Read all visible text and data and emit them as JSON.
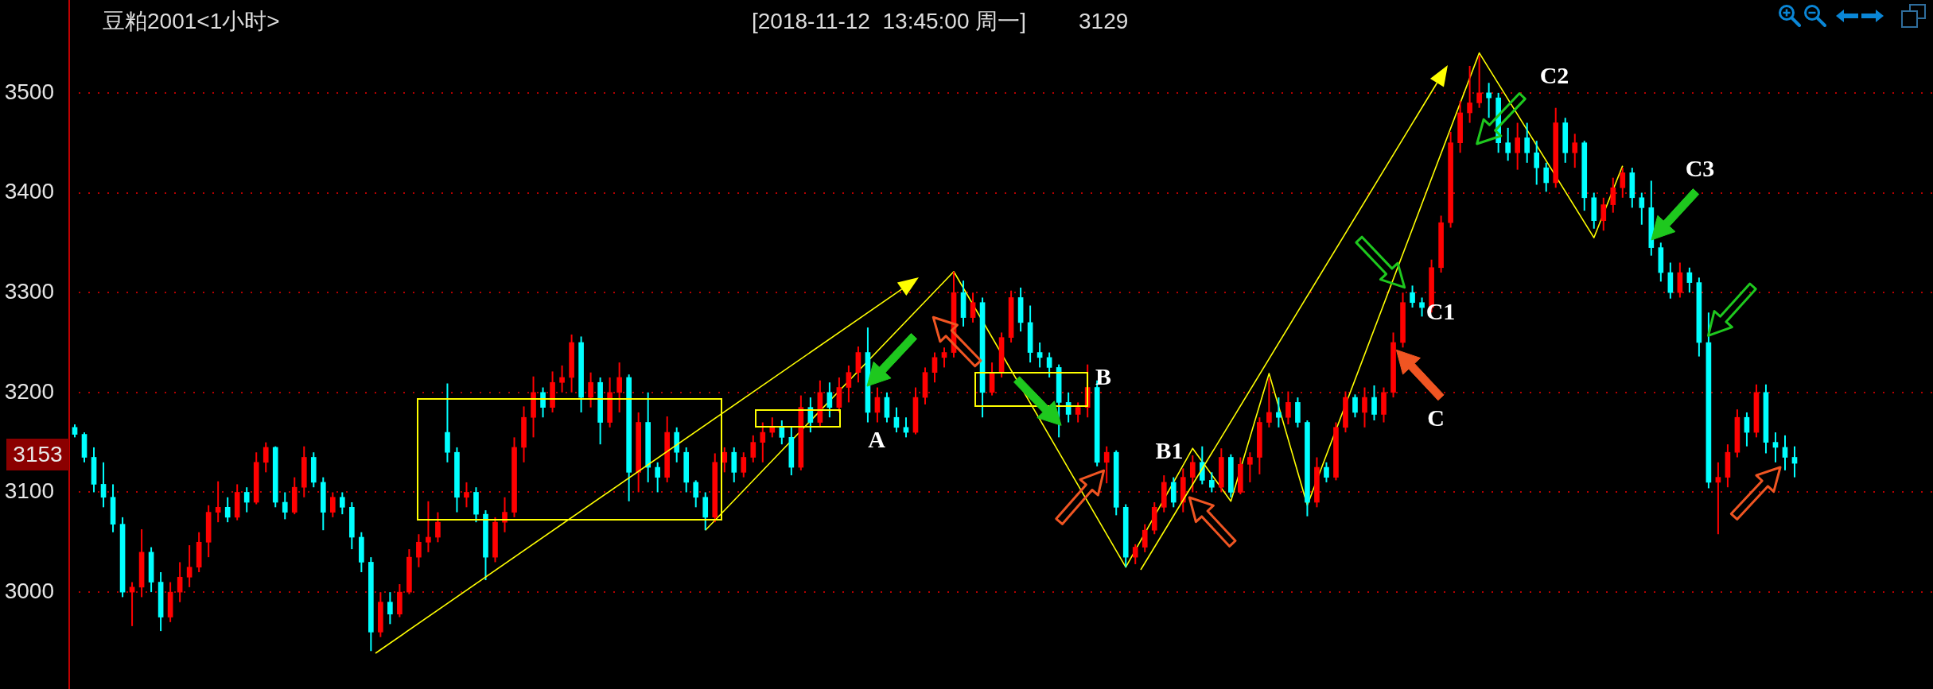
{
  "chart_data": {
    "type": "candlestick",
    "title": "豆粕2001<1小时>",
    "subtitle": "[2018-11-12  13:45:00 周一]",
    "categories": [
      null,
      null,
      null,
      null,
      null,
      null,
      null,
      null,
      null,
      null,
      null,
      null,
      null,
      null,
      null,
      null,
      null,
      null,
      null,
      null,
      null,
      null,
      null,
      null,
      null,
      null,
      null,
      null,
      null,
      null,
      null,
      null,
      null,
      null,
      null,
      null,
      null,
      null,
      null,
      null,
      null,
      null,
      null,
      null,
      null,
      null,
      null,
      null,
      null,
      null,
      null,
      null,
      null,
      null,
      null,
      null,
      null,
      null,
      null,
      null,
      null,
      null,
      null,
      null,
      null,
      null,
      null,
      null,
      null,
      null,
      null,
      null,
      null,
      null,
      null,
      null,
      null,
      null,
      null,
      null,
      null,
      null,
      null,
      null,
      null,
      null,
      null,
      null,
      null,
      null,
      null,
      null,
      null,
      null,
      null,
      null,
      null,
      null,
      null,
      null,
      null,
      null,
      null,
      null,
      null,
      null,
      null,
      null,
      null,
      null,
      null,
      null,
      null,
      null,
      null,
      null,
      null,
      null,
      null,
      null,
      null,
      null,
      null,
      null,
      null,
      null,
      null,
      null,
      null,
      null,
      null,
      null,
      null,
      null,
      null,
      null,
      null,
      null,
      null,
      null,
      null,
      null,
      null,
      null,
      null,
      null,
      null,
      null,
      null,
      null,
      null,
      null,
      null,
      null,
      null,
      null,
      null,
      null,
      null,
      null,
      null,
      null,
      null,
      null,
      null,
      null,
      null,
      null,
      null,
      null,
      null,
      null,
      null,
      null,
      null,
      null,
      null,
      null,
      null,
      null,
      null
    ],
    "ohlc": [
      [
        3165,
        3168,
        3155,
        3158
      ],
      [
        3158,
        3160,
        3130,
        3135
      ],
      [
        3135,
        3145,
        3100,
        3108
      ],
      [
        3108,
        3130,
        3085,
        3095
      ],
      [
        3095,
        3108,
        3060,
        3068
      ],
      [
        3068,
        3075,
        2995,
        3000
      ],
      [
        3000,
        3010,
        2966,
        3005
      ],
      [
        3005,
        3063,
        2995,
        3040
      ],
      [
        3040,
        3045,
        3000,
        3010
      ],
      [
        3010,
        3020,
        2961,
        2975
      ],
      [
        2975,
        3010,
        2970,
        3000
      ],
      [
        3000,
        3030,
        2990,
        3015
      ],
      [
        3015,
        3047,
        3005,
        3025
      ],
      [
        3025,
        3060,
        3020,
        3050
      ],
      [
        3050,
        3087,
        3035,
        3080
      ],
      [
        3080,
        3111,
        3070,
        3085
      ],
      [
        3085,
        3095,
        3070,
        3075
      ],
      [
        3075,
        3108,
        3072,
        3100
      ],
      [
        3100,
        3105,
        3080,
        3090
      ],
      [
        3090,
        3140,
        3088,
        3130
      ],
      [
        3130,
        3150,
        3120,
        3145
      ],
      [
        3145,
        3146,
        3085,
        3090
      ],
      [
        3090,
        3100,
        3073,
        3080
      ],
      [
        3080,
        3115,
        3078,
        3105
      ],
      [
        3105,
        3146,
        3095,
        3135
      ],
      [
        3135,
        3140,
        3105,
        3110
      ],
      [
        3110,
        3115,
        3062,
        3080
      ],
      [
        3080,
        3100,
        3075,
        3095
      ],
      [
        3095,
        3100,
        3078,
        3085
      ],
      [
        3085,
        3090,
        3043,
        3055
      ],
      [
        3055,
        3060,
        3020,
        3030
      ],
      [
        3030,
        3035,
        2941,
        2960
      ],
      [
        2960,
        3000,
        2955,
        2990
      ],
      [
        2990,
        3000,
        2968,
        2978
      ],
      [
        2978,
        3008,
        2975,
        3000
      ],
      [
        3000,
        3043,
        2998,
        3035
      ],
      [
        3035,
        3058,
        3025,
        3050
      ],
      [
        3050,
        3091,
        3040,
        3055
      ],
      [
        3055,
        3080,
        3050,
        3070
      ],
      [
        3160,
        3209,
        3130,
        3140
      ],
      [
        3140,
        3145,
        3080,
        3095
      ],
      [
        3095,
        3110,
        3085,
        3100
      ],
      [
        3100,
        3105,
        3070,
        3078
      ],
      [
        3078,
        3082,
        3012,
        3035
      ],
      [
        3035,
        3075,
        3030,
        3070
      ],
      [
        3070,
        3095,
        3060,
        3080
      ],
      [
        3080,
        3155,
        3075,
        3145
      ],
      [
        3145,
        3186,
        3130,
        3175
      ],
      [
        3175,
        3216,
        3155,
        3200
      ],
      [
        3200,
        3205,
        3175,
        3185
      ],
      [
        3185,
        3221,
        3180,
        3210
      ],
      [
        3210,
        3227,
        3200,
        3215
      ],
      [
        3215,
        3258,
        3200,
        3250
      ],
      [
        3250,
        3256,
        3180,
        3195
      ],
      [
        3195,
        3220,
        3185,
        3210
      ],
      [
        3210,
        3215,
        3148,
        3170
      ],
      [
        3170,
        3215,
        3165,
        3200
      ],
      [
        3200,
        3230,
        3180,
        3215
      ],
      [
        3215,
        3218,
        3091,
        3120
      ],
      [
        3120,
        3180,
        3100,
        3170
      ],
      [
        3170,
        3200,
        3110,
        3125
      ],
      [
        3125,
        3130,
        3100,
        3115
      ],
      [
        3115,
        3176,
        3110,
        3160
      ],
      [
        3160,
        3165,
        3130,
        3140
      ],
      [
        3140,
        3145,
        3100,
        3110
      ],
      [
        3110,
        3112,
        3085,
        3095
      ],
      [
        3095,
        3100,
        3062,
        3075
      ],
      [
        3075,
        3139,
        3070,
        3130
      ],
      [
        3130,
        3145,
        3120,
        3140
      ],
      [
        3140,
        3145,
        3110,
        3120
      ],
      [
        3120,
        3140,
        3115,
        3135
      ],
      [
        3135,
        3157,
        3130,
        3150
      ],
      [
        3150,
        3170,
        3130,
        3160
      ],
      [
        3160,
        3175,
        3155,
        3165
      ],
      [
        3165,
        3172,
        3148,
        3155
      ],
      [
        3155,
        3165,
        3117,
        3125
      ],
      [
        3125,
        3197,
        3122,
        3185
      ],
      [
        3185,
        3195,
        3160,
        3170
      ],
      [
        3170,
        3212,
        3165,
        3200
      ],
      [
        3200,
        3210,
        3175,
        3185
      ],
      [
        3185,
        3215,
        3180,
        3205
      ],
      [
        3205,
        3227,
        3190,
        3220
      ],
      [
        3220,
        3246,
        3210,
        3240
      ],
      [
        3240,
        3265,
        3170,
        3180
      ],
      [
        3180,
        3205,
        3170,
        3195
      ],
      [
        3195,
        3200,
        3170,
        3175
      ],
      [
        3175,
        3185,
        3160,
        3165
      ],
      [
        3165,
        3175,
        3155,
        3160
      ],
      [
        3160,
        3205,
        3158,
        3195
      ],
      [
        3195,
        3225,
        3188,
        3220
      ],
      [
        3220,
        3240,
        3210,
        3235
      ],
      [
        3235,
        3245,
        3225,
        3240
      ],
      [
        3240,
        3321,
        3235,
        3300
      ],
      [
        3300,
        3312,
        3266,
        3275
      ],
      [
        3275,
        3300,
        3270,
        3290
      ],
      [
        3290,
        3295,
        3175,
        3200
      ],
      [
        3200,
        3230,
        3197,
        3220
      ],
      [
        3220,
        3260,
        3215,
        3255
      ],
      [
        3255,
        3302,
        3250,
        3295
      ],
      [
        3295,
        3305,
        3261,
        3270
      ],
      [
        3270,
        3287,
        3230,
        3240
      ],
      [
        3240,
        3250,
        3225,
        3235
      ],
      [
        3235,
        3240,
        3215,
        3225
      ],
      [
        3225,
        3228,
        3155,
        3190
      ],
      [
        3190,
        3200,
        3170,
        3178
      ],
      [
        3178,
        3190,
        3170,
        3185
      ],
      [
        3185,
        3228,
        3175,
        3205
      ],
      [
        3205,
        3212,
        3126,
        3130
      ],
      [
        3130,
        3146,
        3109,
        3140
      ],
      [
        3140,
        3142,
        3077,
        3085
      ],
      [
        3085,
        3088,
        3025,
        3035
      ],
      [
        3035,
        3048,
        3028,
        3045
      ],
      [
        3045,
        3068,
        3040,
        3062
      ],
      [
        3062,
        3090,
        3058,
        3085
      ],
      [
        3085,
        3117,
        3080,
        3110
      ],
      [
        3110,
        3115,
        3085,
        3090
      ],
      [
        3090,
        3124,
        3080,
        3115
      ],
      [
        3115,
        3137,
        3100,
        3130
      ],
      [
        3130,
        3146,
        3108,
        3112
      ],
      [
        3112,
        3120,
        3100,
        3105
      ],
      [
        3105,
        3144,
        3100,
        3135
      ],
      [
        3135,
        3138,
        3095,
        3100
      ],
      [
        3100,
        3135,
        3098,
        3128
      ],
      [
        3128,
        3140,
        3110,
        3135
      ],
      [
        3135,
        3175,
        3118,
        3170
      ],
      [
        3170,
        3214,
        3165,
        3180
      ],
      [
        3180,
        3195,
        3165,
        3175
      ],
      [
        3175,
        3201,
        3168,
        3190
      ],
      [
        3190,
        3195,
        3165,
        3170
      ],
      [
        3170,
        3172,
        3076,
        3090
      ],
      [
        3090,
        3135,
        3085,
        3125
      ],
      [
        3125,
        3130,
        3110,
        3115
      ],
      [
        3115,
        3170,
        3112,
        3165
      ],
      [
        3165,
        3201,
        3160,
        3195
      ],
      [
        3195,
        3198,
        3175,
        3180
      ],
      [
        3180,
        3205,
        3165,
        3195
      ],
      [
        3195,
        3207,
        3172,
        3178
      ],
      [
        3178,
        3205,
        3170,
        3200
      ],
      [
        3200,
        3260,
        3195,
        3250
      ],
      [
        3250,
        3300,
        3245,
        3290
      ],
      [
        3300,
        3307,
        3285,
        3290
      ],
      [
        3290,
        3295,
        3276,
        3285
      ],
      [
        3285,
        3333,
        3280,
        3325
      ],
      [
        3325,
        3377,
        3320,
        3370
      ],
      [
        3370,
        3461,
        3365,
        3450
      ],
      [
        3450,
        3492,
        3440,
        3480
      ],
      [
        3480,
        3527,
        3470,
        3490
      ],
      [
        3490,
        3537,
        3485,
        3500
      ],
      [
        3500,
        3510,
        3475,
        3495
      ],
      [
        3495,
        3500,
        3440,
        3450
      ],
      [
        3450,
        3465,
        3432,
        3440
      ],
      [
        3440,
        3470,
        3423,
        3455
      ],
      [
        3455,
        3470,
        3430,
        3440
      ],
      [
        3440,
        3452,
        3408,
        3425
      ],
      [
        3425,
        3430,
        3401,
        3410
      ],
      [
        3410,
        3485,
        3405,
        3470
      ],
      [
        3470,
        3475,
        3430,
        3440
      ],
      [
        3440,
        3459,
        3425,
        3450
      ],
      [
        3450,
        3452,
        3382,
        3395
      ],
      [
        3395,
        3400,
        3364,
        3372
      ],
      [
        3372,
        3395,
        3362,
        3388
      ],
      [
        3388,
        3415,
        3380,
        3405
      ],
      [
        3405,
        3425,
        3395,
        3420
      ],
      [
        3420,
        3425,
        3385,
        3395
      ],
      [
        3395,
        3400,
        3368,
        3385
      ],
      [
        3385,
        3412,
        3337,
        3345
      ],
      [
        3345,
        3350,
        3311,
        3320
      ],
      [
        3320,
        3330,
        3294,
        3300
      ],
      [
        3300,
        3330,
        3295,
        3320
      ],
      [
        3320,
        3325,
        3300,
        3310
      ],
      [
        3310,
        3315,
        3236,
        3250
      ],
      [
        3250,
        3280,
        3104,
        3110
      ],
      [
        3110,
        3130,
        3058,
        3115
      ],
      [
        3115,
        3148,
        3105,
        3140
      ],
      [
        3140,
        3183,
        3135,
        3175
      ],
      [
        3175,
        3180,
        3146,
        3160
      ],
      [
        3160,
        3208,
        3155,
        3200
      ],
      [
        3200,
        3208,
        3139,
        3150
      ],
      [
        3150,
        3160,
        3130,
        3145
      ],
      [
        3145,
        3157,
        3122,
        3135
      ],
      [
        3135,
        3146,
        3115,
        3129
      ]
    ],
    "colors": [
      "#00ffff",
      "#00ffff",
      "#00ffff",
      "#00ffff",
      "#00ffff",
      "#00ffff",
      "#ff0000",
      "#ff0000",
      "#00ffff",
      "#00ffff",
      "#ff0000",
      "#ff0000",
      "#ff0000",
      "#ff0000",
      "#ff0000",
      "#ff0000",
      "#00ffff",
      "#ff0000",
      "#00ffff",
      "#ff0000",
      "#ff0000",
      "#00ffff",
      "#00ffff",
      "#ff0000",
      "#ff0000",
      "#00ffff",
      "#00ffff",
      "#ff0000",
      "#00ffff",
      "#00ffff",
      "#00ffff",
      "#00ffff",
      "#ff0000",
      "#00ffff",
      "#ff0000",
      "#ff0000",
      "#ff0000",
      "#ff0000",
      "#ff0000",
      "#00ffff",
      "#00ffff",
      "#ff0000",
      "#00ffff",
      "#00ffff",
      "#ff0000",
      "#ff0000",
      "#ff0000",
      "#ff0000",
      "#ff0000",
      "#00ffff",
      "#ff0000",
      "#ff0000",
      "#ff0000",
      "#00ffff",
      "#ff0000",
      "#00ffff",
      "#ff0000",
      "#ff0000",
      "#00ffff",
      "#ff0000",
      "#00ffff",
      "#00ffff",
      "#ff0000",
      "#00ffff",
      "#00ffff",
      "#00ffff",
      "#00ffff",
      "#ff0000",
      "#ff0000",
      "#00ffff",
      "#ff0000",
      "#ff0000",
      "#ff0000",
      "#ff0000",
      "#00ffff",
      "#00ffff",
      "#ff0000",
      "#00ffff",
      "#ff0000",
      "#00ffff",
      "#ff0000",
      "#ff0000",
      "#ff0000",
      "#00ffff",
      "#ff0000",
      "#00ffff",
      "#00ffff",
      "#00ffff",
      "#ff0000",
      "#ff0000",
      "#ff0000",
      "#ff0000",
      "#ff0000",
      "#00ffff",
      "#ff0000",
      "#00ffff",
      "#ff0000",
      "#ff0000",
      "#ff0000",
      "#00ffff",
      "#00ffff",
      "#00ffff",
      "#00ffff",
      "#00ffff",
      "#00ffff",
      "#ff0000",
      "#ff0000",
      "#00ffff",
      "#ff0000",
      "#00ffff",
      "#00ffff",
      "#ff0000",
      "#ff0000",
      "#ff0000",
      "#ff0000",
      "#00ffff",
      "#ff0000",
      "#ff0000",
      "#00ffff",
      "#00ffff",
      "#ff0000",
      "#00ffff",
      "#ff0000",
      "#ff0000",
      "#ff0000",
      "#ff0000",
      "#00ffff",
      "#ff0000",
      "#00ffff",
      "#00ffff",
      "#ff0000",
      "#00ffff",
      "#ff0000",
      "#ff0000",
      "#00ffff",
      "#ff0000",
      "#00ffff",
      "#ff0000",
      "#ff0000",
      "#ff0000",
      "#00ffff",
      "#00ffff",
      "#ff0000",
      "#ff0000",
      "#ff0000",
      "#ff0000",
      "#ff0000",
      "#ff0000",
      "#00ffff",
      "#00ffff",
      "#00ffff",
      "#ff0000",
      "#00ffff",
      "#00ffff",
      "#00ffff",
      "#ff0000",
      "#00ffff",
      "#ff0000",
      "#00ffff",
      "#00ffff",
      "#ff0000",
      "#ff0000",
      "#ff0000",
      "#00ffff",
      "#00ffff",
      "#00ffff",
      "#00ffff",
      "#00ffff",
      "#ff0000",
      "#00ffff",
      "#00ffff",
      "#00ffff",
      "#ff0000",
      "#ff0000",
      "#ff0000",
      "#00ffff",
      "#ff0000",
      "#00ffff",
      "#00ffff",
      "#00ffff",
      "#00ffff"
    ],
    "series": [
      {
        "type": "line",
        "color": "#ffff00",
        "values": [
          null,
          null,
          null,
          null,
          null,
          null,
          null,
          null,
          null,
          null,
          null,
          null,
          null,
          null,
          null,
          null,
          null,
          null,
          null,
          null,
          null,
          null,
          null,
          null,
          null,
          null,
          null,
          null,
          null,
          null,
          null,
          null,
          null,
          null,
          null,
          null,
          null,
          null,
          null,
          null,
          null,
          null,
          null,
          null,
          null,
          null,
          null,
          null,
          null,
          null,
          null,
          null,
          null,
          null,
          null,
          null,
          null,
          null,
          null,
          null,
          null,
          null,
          null,
          null,
          null,
          null,
          3062,
          null,
          null,
          null,
          null,
          null,
          null,
          null,
          null,
          null,
          null,
          null,
          null,
          null,
          null,
          null,
          null,
          null,
          null,
          null,
          null,
          null,
          null,
          null,
          null,
          null,
          3321,
          null,
          null,
          null,
          null,
          null,
          null,
          null,
          null,
          null,
          null,
          null,
          null,
          null,
          null,
          null,
          null,
          null,
          3025,
          null,
          null,
          null,
          null,
          null,
          null,
          3144,
          null,
          null,
          null,
          3091,
          null,
          null,
          null,
          3219,
          null,
          null,
          null,
          3087,
          null,
          null,
          null,
          null,
          null,
          null,
          null,
          null,
          null,
          null,
          null,
          null,
          null,
          null,
          null,
          null,
          null,
          3540,
          null,
          null,
          null,
          null,
          null,
          null,
          null,
          null,
          null,
          null,
          null,
          3355,
          null,
          null,
          3427,
          null,
          null,
          null,
          null,
          null,
          null,
          null,
          null,
          null,
          null,
          null,
          null,
          null,
          null,
          null,
          null,
          null,
          null
        ]
      }
    ],
    "ylim": [
      2903,
      3593
    ],
    "yticks": [
      3000,
      3100,
      3200,
      3300,
      3400,
      3500
    ],
    "grid": "y",
    "tick_labels": "y",
    "annotations": [
      "3129",
      "A",
      "B",
      "B1",
      "C",
      "C1",
      "C2",
      "C3",
      "3153"
    ]
  }
}
